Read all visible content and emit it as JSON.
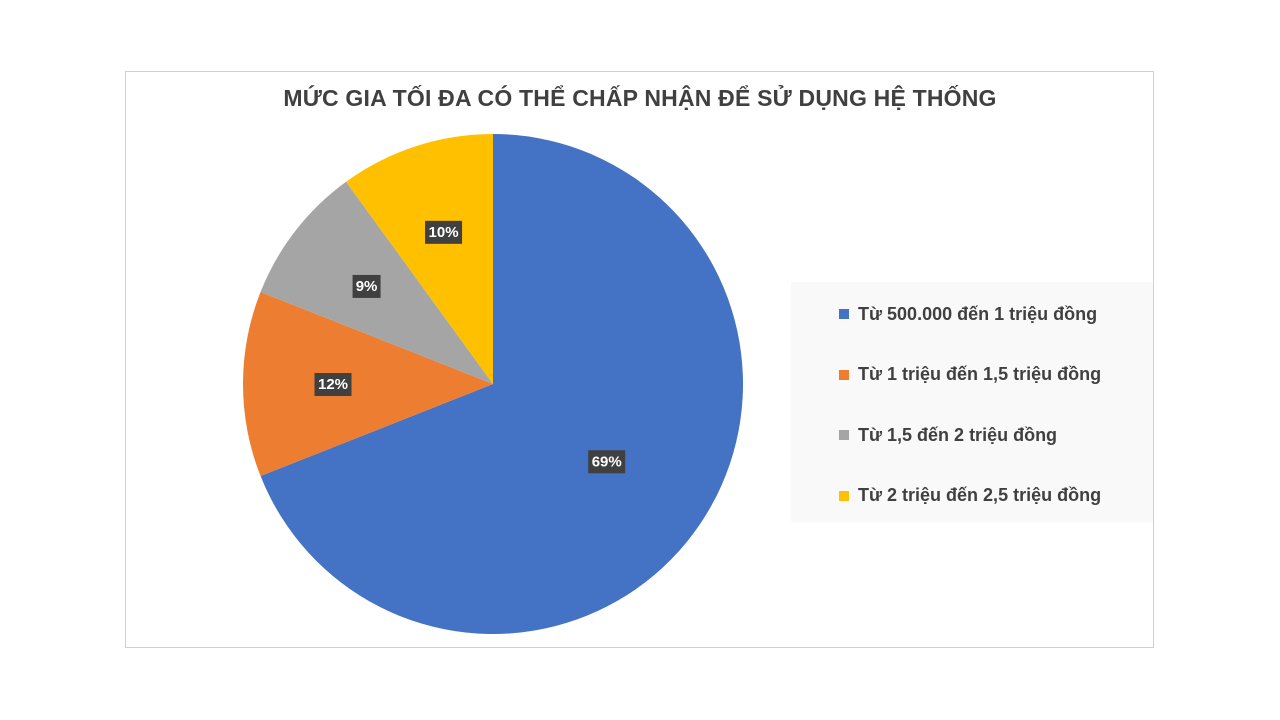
{
  "chart_data": {
    "type": "pie",
    "title": "MỨC GIA TỐI ĐA CÓ THỂ CHẤP NHẬN ĐỂ SỬ DỤNG HỆ THỐNG",
    "slices": [
      {
        "name": "Từ 500.000 đến 1 triệu đồng",
        "value": 69,
        "label": "69%",
        "color": "#4472c4"
      },
      {
        "name": "Từ 1 triệu đến 1,5 triệu đồng",
        "value": 12,
        "label": "12%",
        "color": "#ed7d31"
      },
      {
        "name": "Từ 1,5 đến 2 triệu đồng",
        "value": 9,
        "label": "9%",
        "color": "#a5a5a5"
      },
      {
        "name": "Từ 2 triệu đến 2,5 triệu đồng",
        "value": 10,
        "label": "10%",
        "color": "#ffc000"
      }
    ],
    "start_angle_deg": 0,
    "direction": "clockwise",
    "legend_position": "right"
  }
}
